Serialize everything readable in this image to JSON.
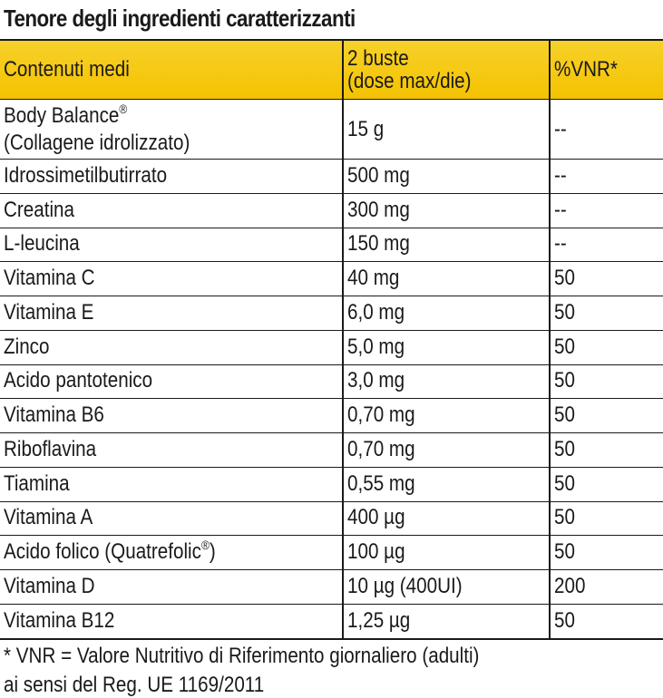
{
  "title": "Tenore degli ingredienti caratterizzanti",
  "header": {
    "col1": "Contenuti medi",
    "col2_line1": "2 buste",
    "col2_line2": "(dose max/die)",
    "col3": "%VNR*"
  },
  "rows": [
    {
      "name": "Body Balance",
      "sup": "®",
      "name2": "(Collagene idrolizzato)",
      "amount": "15 g",
      "vnr": "--"
    },
    {
      "name": "Idrossimetilbutirrato",
      "amount": "500 mg",
      "vnr": "--"
    },
    {
      "name": "Creatina",
      "amount": "300 mg",
      "vnr": "--"
    },
    {
      "name": "L-leucina",
      "amount": "150 mg",
      "vnr": "--"
    },
    {
      "name": "Vitamina C",
      "amount": "40 mg",
      "vnr": "50"
    },
    {
      "name": "Vitamina E",
      "amount": "6,0 mg",
      "vnr": "50"
    },
    {
      "name": "Zinco",
      "amount": "5,0 mg",
      "vnr": "50"
    },
    {
      "name": "Acido pantotenico",
      "amount": "3,0 mg",
      "vnr": "50"
    },
    {
      "name": "Vitamina B6",
      "amount": "0,70 mg",
      "vnr": "50"
    },
    {
      "name": "Riboflavina",
      "amount": "0,70 mg",
      "vnr": "50"
    },
    {
      "name": "Tiamina",
      "amount": "0,55 mg",
      "vnr": "50"
    },
    {
      "name": "Vitamina A",
      "amount": "400 µg",
      "vnr": "50"
    },
    {
      "name": "Acido folico (Quatrefolic",
      "sup": "®",
      "name_tail": ")",
      "amount": "100 µg",
      "vnr": "50"
    },
    {
      "name": "Vitamina D",
      "amount": "10 µg (400UI)",
      "vnr": "200"
    },
    {
      "name": "Vitamina B12",
      "amount": "1,25 µg",
      "vnr": "50"
    }
  ],
  "footnote": {
    "line1": "* VNR = Valore Nutritivo di Riferimento giornaliero (adulti)",
    "line2": "ai sensi del Reg. UE 1169/2011"
  },
  "colors": {
    "header_bg": "#f5c800",
    "text": "#1a1a1a",
    "rule": "#1a1a1a"
  }
}
